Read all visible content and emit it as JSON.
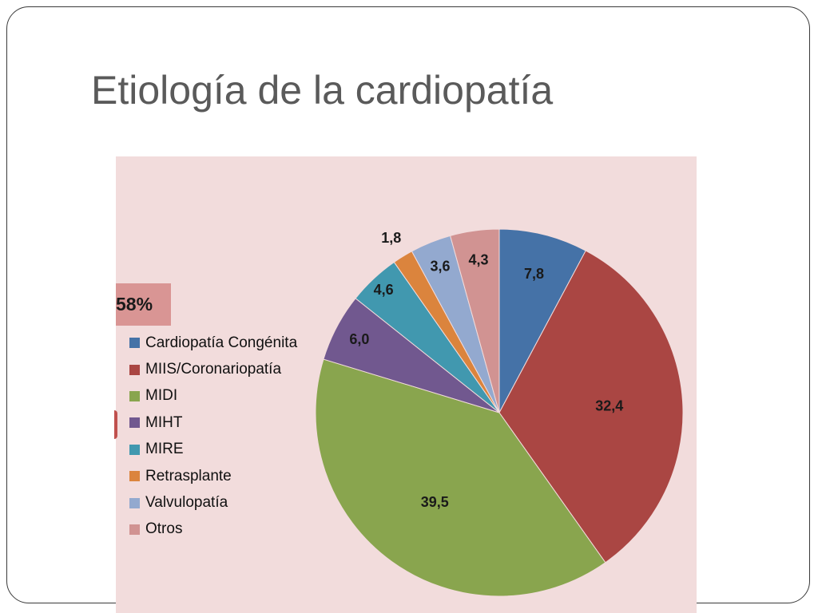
{
  "slide": {
    "title": "Etiología de la cardiopatía"
  },
  "badge": {
    "text": "58%",
    "color": "#d99594"
  },
  "chart_data": {
    "type": "pie",
    "title": "",
    "legend_position": "left",
    "start_angle_deg": 0,
    "direction": "clockwise",
    "categories": [
      "Cardiopatía Congénita",
      "MIIS/Coronariopatía",
      "MIDI",
      "MIHT",
      "MIRE",
      "Retrasplante",
      "Valvulopatía",
      "Otros"
    ],
    "values": [
      7.8,
      32.4,
      39.5,
      6.0,
      4.6,
      1.8,
      3.6,
      4.3
    ],
    "data_labels": [
      "7,8",
      "32,4",
      "39,5",
      "6,0",
      "4,6",
      "1,8",
      "3,6",
      "4,3"
    ],
    "colors": [
      "#4572a7",
      "#aa4643",
      "#89a54e",
      "#71588f",
      "#4198af",
      "#db843d",
      "#93a9cf",
      "#d19392"
    ],
    "background": "#f2dcdc"
  }
}
